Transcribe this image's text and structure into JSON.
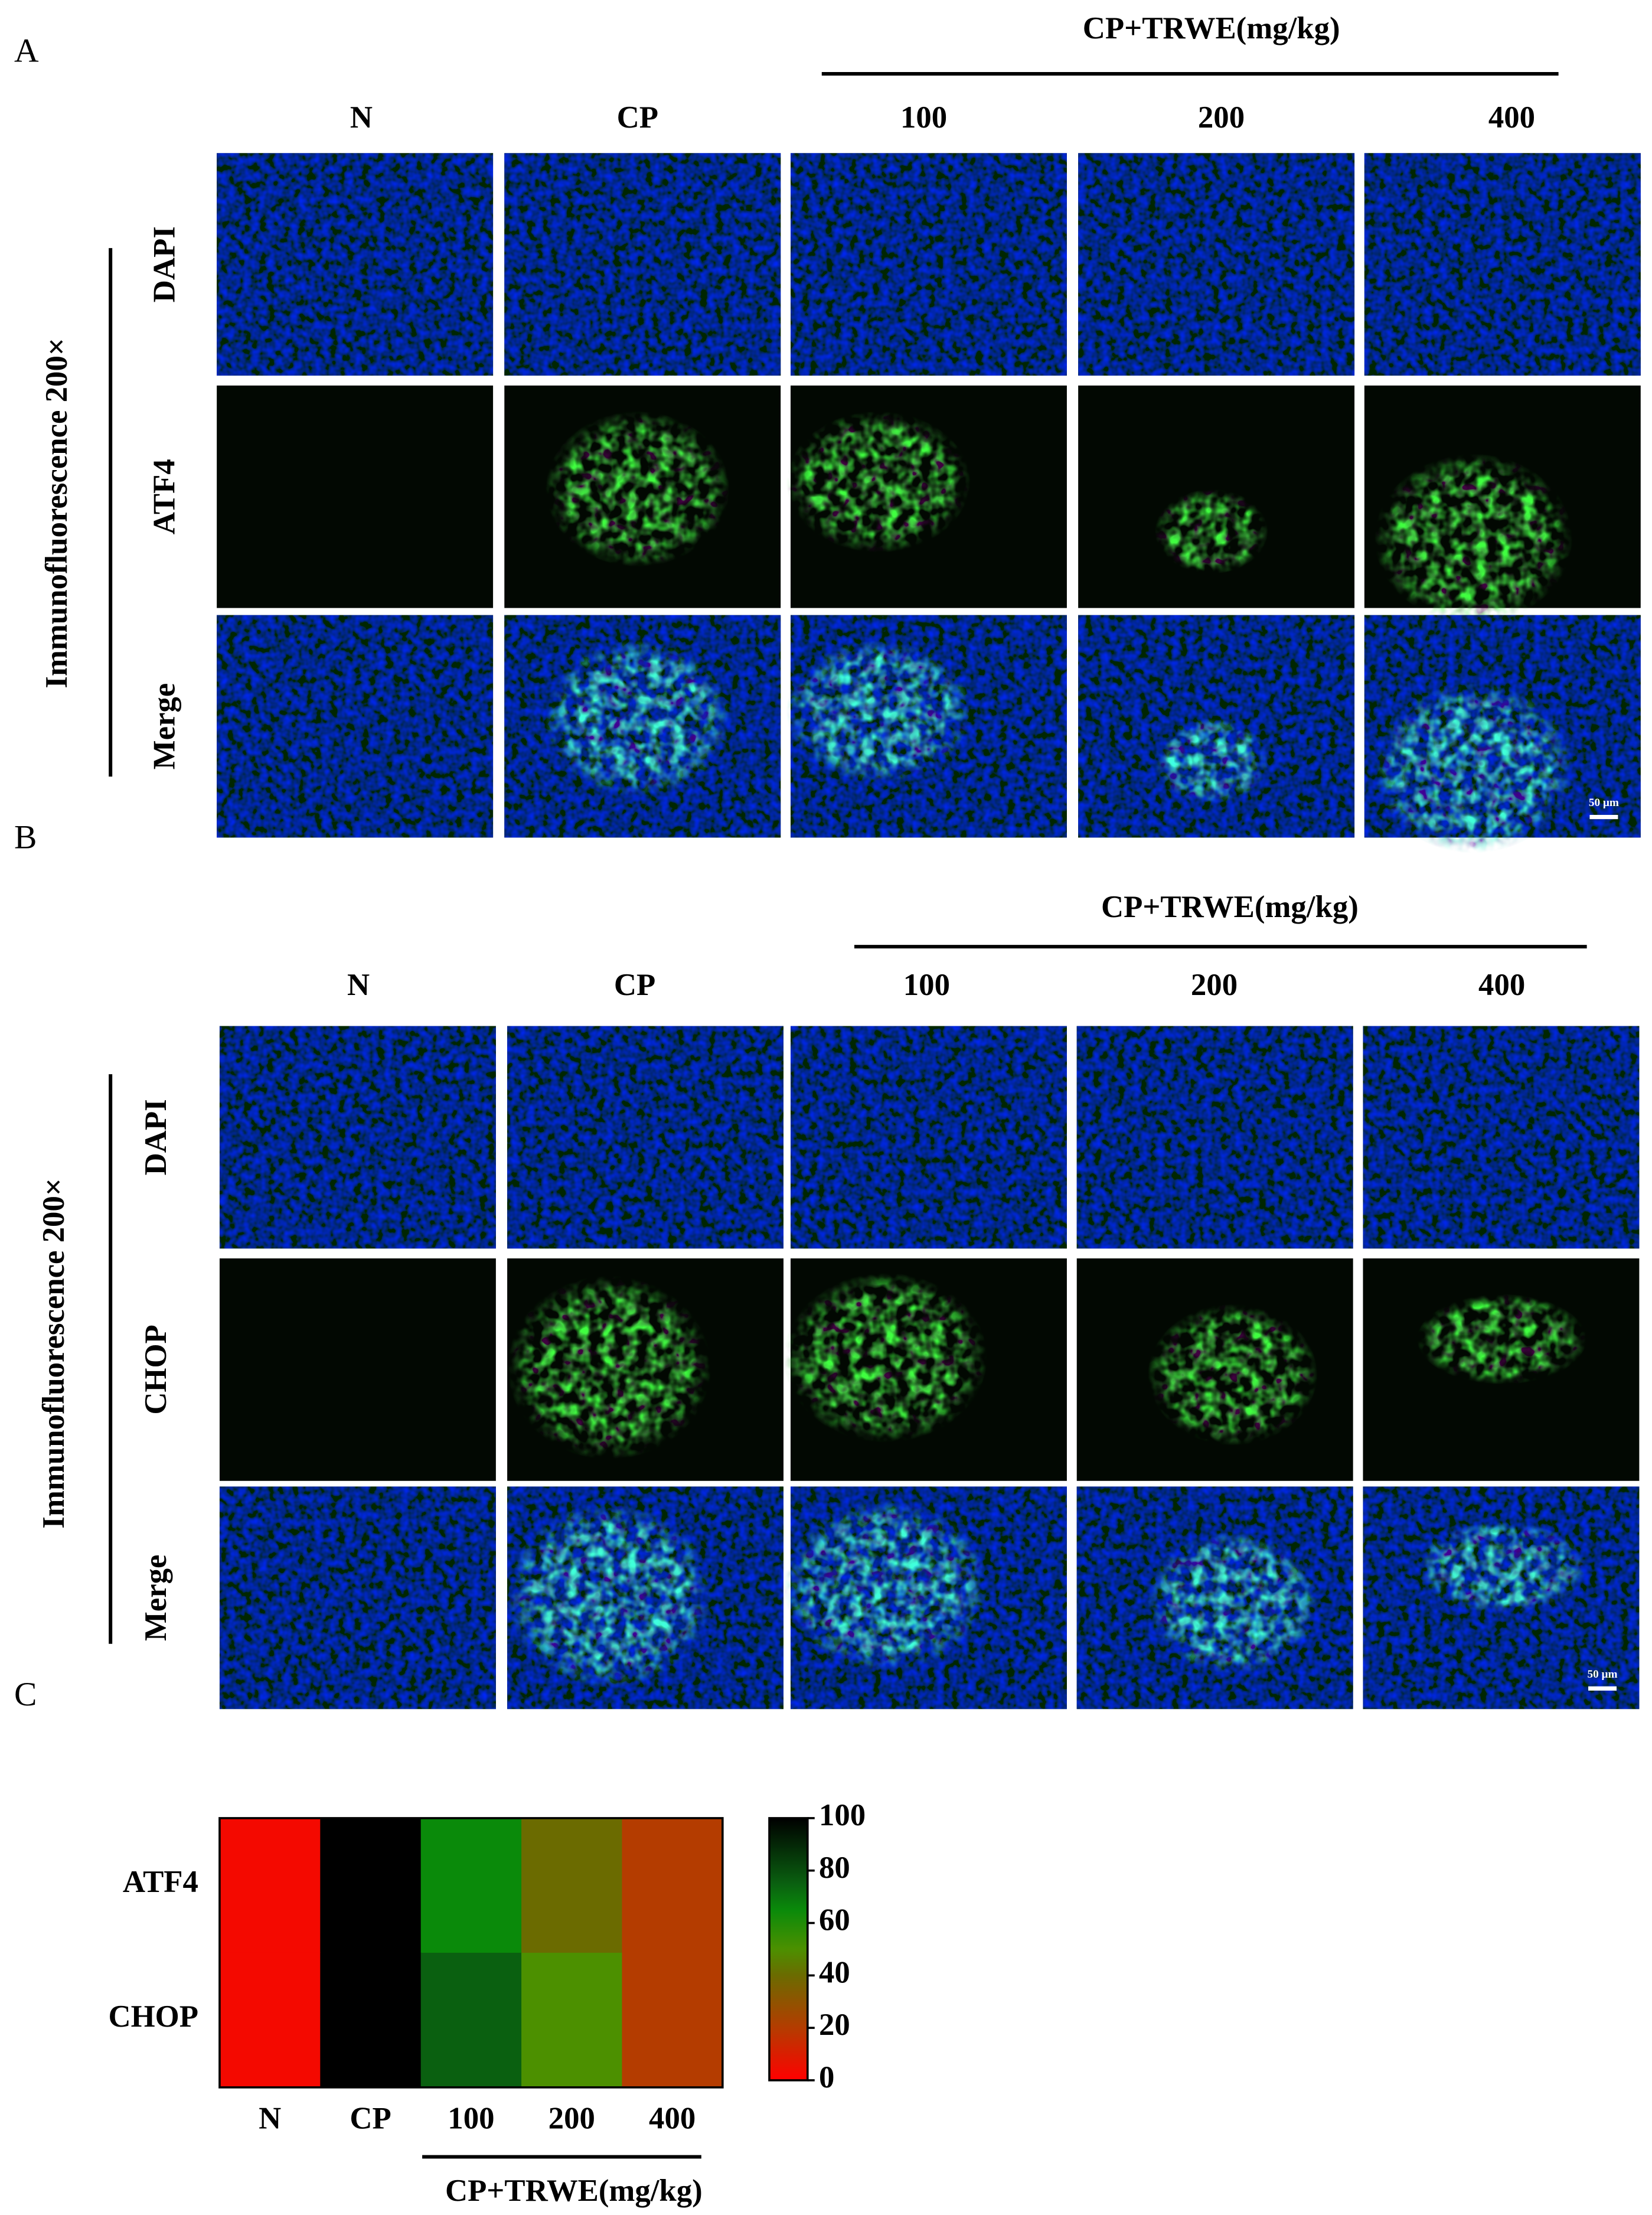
{
  "panels": [
    {
      "label": "A",
      "group_label": "CP+TRWE(mg/kg)",
      "columns": [
        "N",
        "CP",
        "100",
        "200",
        "400"
      ],
      "axis_label": "Immunofluorescence 200×",
      "rows": [
        "DAPI",
        "ATF4",
        "Merge"
      ],
      "scale_bar": "50 µm"
    },
    {
      "label": "B",
      "group_label": "CP+TRWE(mg/kg)",
      "columns": [
        "N",
        "CP",
        "100",
        "200",
        "400"
      ],
      "axis_label": "Immunofluorescence 200×",
      "rows": [
        "DAPI",
        "CHOP",
        "Merge"
      ],
      "scale_bar": "50 µm"
    }
  ],
  "heatmap": {
    "label": "C",
    "columns": [
      "N",
      "CP",
      "100",
      "200",
      "400"
    ],
    "group_label": "CP+TRWE(mg/kg)",
    "rows": [
      {
        "name": "ATF4",
        "values": [
          3,
          100,
          65,
          40,
          20
        ]
      },
      {
        "name": "CHOP",
        "values": [
          3,
          100,
          75,
          50,
          20
        ]
      }
    ],
    "colorbar_lim": [
      0,
      100
    ],
    "colorbar_ticks": [
      0,
      20,
      40,
      60,
      80,
      100
    ]
  }
}
